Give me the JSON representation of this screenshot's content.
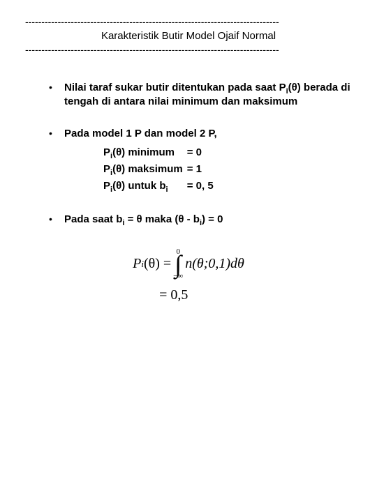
{
  "header": {
    "dashline": "------------------------------------------------------------------------------",
    "title": "Karakteristik Butir Model Ojaif Normal"
  },
  "bullets": {
    "b1_part1": "Nilai taraf sukar butir ditentukan pada saat P",
    "b1_sub1": "i",
    "b1_part2": "(θ) berada di tengah di antara nilai minimum dan maksimum",
    "b2": "Pada model 1 P dan model 2 P,",
    "b3_part1": "Pada saat b",
    "b3_sub1": "i",
    "b3_part2": " = θ maka  (θ - b",
    "b3_sub2": "i",
    "b3_part3": ") = 0"
  },
  "eq": {
    "r1c1a": "P",
    "r1c1sub": "i",
    "r1c1b": "(θ) minimum",
    "r1c2": "= 0",
    "r2c1a": "P",
    "r2c1sub": "i",
    "r2c1b": "(θ) maksimum",
    "r2c2": "= 1",
    "r3c1a": "P",
    "r3c1sub": "i",
    "r3c1b": "(θ) untuk b",
    "r3c1sub2": "i",
    "r3c2": "= 0, 5"
  },
  "formula": {
    "lhs_P": "P",
    "lhs_sub": "i",
    "lhs_after": "(θ) = ",
    "int_upper": "0",
    "int_lower": "−∞",
    "integrand": "n(θ;0,1)dθ",
    "line2": "= 0,5"
  },
  "style": {
    "background": "#ffffff",
    "text_color": "#000000",
    "body_fontsize": 15,
    "formula_fontsize": 20
  }
}
